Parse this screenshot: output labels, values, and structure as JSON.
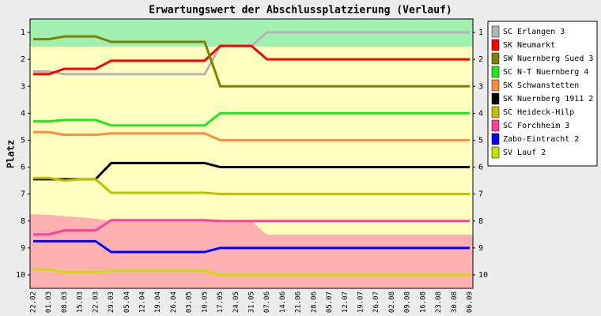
{
  "chart_data": {
    "type": "line",
    "title": "Erwartungswert der Abschlussplatzierung (Verlauf)",
    "y_label": "Platz",
    "categories": [
      "22.02",
      "01.03",
      "08.03",
      "15.03",
      "22.03",
      "29.03",
      "05.04",
      "12.04",
      "19.04",
      "26.04",
      "03.05",
      "10.05",
      "17.05",
      "24.05",
      "31.05",
      "07.06",
      "14.06",
      "21.06",
      "28.06",
      "05.07",
      "12.07",
      "19.07",
      "26.07",
      "02.08",
      "09.08",
      "16.08",
      "23.08",
      "30.08",
      "06.09"
    ],
    "ylim": [
      10.5,
      0.5
    ],
    "yticks": [
      1,
      2,
      3,
      4,
      5,
      6,
      7,
      8,
      9,
      10
    ],
    "series": [
      {
        "name": "SC Erlangen 3",
        "color": "#b4b4b4",
        "values": [
          2.45,
          2.45,
          2.55,
          2.55,
          2.55,
          2.55,
          2.55,
          2.55,
          2.55,
          2.55,
          2.55,
          2.55,
          1.5,
          1.5,
          1.5,
          1,
          1,
          1,
          1,
          1,
          1,
          1,
          1,
          1,
          1,
          1,
          1,
          1,
          1
        ]
      },
      {
        "name": "SK Neumarkt",
        "color": "#ff0000",
        "values": [
          2.55,
          2.55,
          2.35,
          2.35,
          2.35,
          2.05,
          2.05,
          2.05,
          2.05,
          2.05,
          2.05,
          2.05,
          1.5,
          1.5,
          1.5,
          2,
          2,
          2,
          2,
          2,
          2,
          2,
          2,
          2,
          2,
          2,
          2,
          2,
          2
        ]
      },
      {
        "name": "SW Nuernberg Sued 3",
        "color": "#808000",
        "values": [
          1.25,
          1.25,
          1.15,
          1.15,
          1.15,
          1.35,
          1.35,
          1.35,
          1.35,
          1.35,
          1.35,
          1.35,
          3,
          3,
          3,
          3,
          3,
          3,
          3,
          3,
          3,
          3,
          3,
          3,
          3,
          3,
          3,
          3,
          3
        ]
      },
      {
        "name": "SC N-T Nuernberg 4",
        "color": "#20e820",
        "values": [
          4.3,
          4.3,
          4.25,
          4.25,
          4.25,
          4.45,
          4.45,
          4.45,
          4.45,
          4.45,
          4.45,
          4.45,
          4,
          4,
          4,
          4,
          4,
          4,
          4,
          4,
          4,
          4,
          4,
          4,
          4,
          4,
          4,
          4,
          4
        ]
      },
      {
        "name": "SK Schwanstetten",
        "color": "#ff8c40",
        "values": [
          4.7,
          4.7,
          4.8,
          4.8,
          4.8,
          4.75,
          4.75,
          4.75,
          4.75,
          4.75,
          4.75,
          4.75,
          5,
          5,
          5,
          5,
          5,
          5,
          5,
          5,
          5,
          5,
          5,
          5,
          5,
          5,
          5,
          5,
          5
        ]
      },
      {
        "name": "SK Nuernberg 1911 2",
        "color": "#000000",
        "values": [
          6.45,
          6.45,
          6.45,
          6.45,
          6.45,
          5.85,
          5.85,
          5.85,
          5.85,
          5.85,
          5.85,
          5.85,
          6,
          6,
          6,
          6,
          6,
          6,
          6,
          6,
          6,
          6,
          6,
          6,
          6,
          6,
          6,
          6,
          6
        ]
      },
      {
        "name": "SC Heideck-Hilp",
        "color": "#c0c000",
        "values": [
          6.4,
          6.4,
          6.5,
          6.45,
          6.45,
          6.95,
          6.95,
          6.95,
          6.95,
          6.95,
          6.95,
          6.95,
          7,
          7,
          7,
          7,
          7,
          7,
          7,
          7,
          7,
          7,
          7,
          7,
          7,
          7,
          7,
          7,
          7
        ]
      },
      {
        "name": "SC Forchheim 3",
        "color": "#ff40a0",
        "values": [
          8.5,
          8.5,
          8.35,
          8.35,
          8.35,
          7.97,
          7.97,
          7.97,
          7.97,
          7.97,
          7.97,
          7.97,
          8,
          8,
          8,
          8,
          8,
          8,
          8,
          8,
          8,
          8,
          8,
          8,
          8,
          8,
          8,
          8,
          8
        ]
      },
      {
        "name": "Zabo-Eintracht 2",
        "color": "#0000ff",
        "values": [
          8.75,
          8.75,
          8.75,
          8.75,
          8.75,
          9.15,
          9.15,
          9.15,
          9.15,
          9.15,
          9.15,
          9.15,
          9,
          9,
          9,
          9,
          9,
          9,
          9,
          9,
          9,
          9,
          9,
          9,
          9,
          9,
          9,
          9,
          9
        ]
      },
      {
        "name": "SV Lauf 2",
        "color": "#c8e000",
        "values": [
          9.8,
          9.8,
          9.9,
          9.9,
          9.9,
          9.85,
          9.85,
          9.85,
          9.85,
          9.85,
          9.85,
          9.85,
          10,
          10,
          10,
          10,
          10,
          10,
          10,
          10,
          10,
          10,
          10,
          10,
          10,
          10,
          10,
          10,
          10
        ]
      }
    ]
  }
}
